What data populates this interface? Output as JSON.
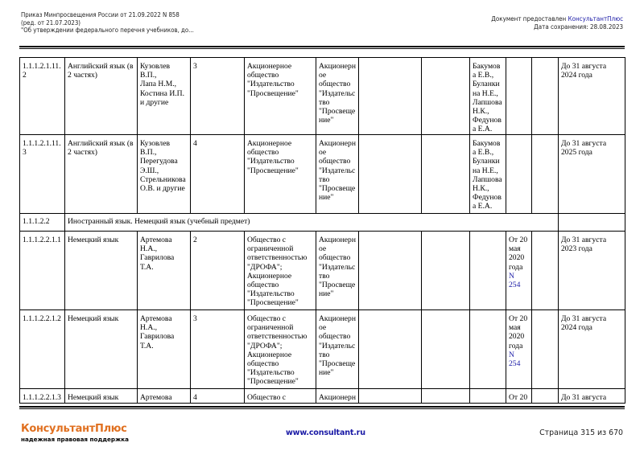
{
  "header": {
    "left_lines": [
      "Приказ Минпросвещения России от 21.09.2022 N 858",
      "(ред. от 21.07.2023)",
      "\"Об утверждении федерального перечня учебников, до..."
    ],
    "provided_prefix": "Документ предоставлен ",
    "provided_brand": "КонсультантПлюс",
    "saved_date": "Дата сохранения: 28.08.2023"
  },
  "table": {
    "rows": [
      {
        "type": "item",
        "cells": [
          {
            "t": "1.1.1.2.1.11.\n2"
          },
          {
            "t": "Английский язык (в\n2 частях)"
          },
          {
            "t": "Кузовлев\nВ.П.,\nЛапа Н.М.,\nКостина И.П.\nи другие"
          },
          {
            "t": "3"
          },
          {
            "t": "Акционерное\nобщество\n\"Издательство\n\"Просвещение\""
          },
          {
            "t": "Акционерн\nое\nобщество\n\"Издательс\nтво\n\"Просвеще\nние\""
          },
          {
            "t": ""
          },
          {
            "t": ""
          },
          {
            "t": "Бакумов\nа Е.В.,\nБуланки\nна Н.Е.,\nЛапшова\nН.К.,\nФедунов\nа Е.А."
          },
          {
            "t": ""
          },
          {
            "t": ""
          },
          {
            "t": "До 31 августа\n2024 года"
          }
        ]
      },
      {
        "type": "item",
        "cells": [
          {
            "t": "1.1.1.2.1.11.\n3"
          },
          {
            "t": "Английский язык (в\n2 частях)"
          },
          {
            "t": "Кузовлев\nВ.П.,\nПерегудова\nЭ.Ш.,\nСтрельникова\nО.В. и другие"
          },
          {
            "t": "4"
          },
          {
            "t": "Акционерное\nобщество\n\"Издательство\n\"Просвещение\""
          },
          {
            "t": "Акционерн\nое\nобщество\n\"Издательс\nтво\n\"Просвеще\nние\""
          },
          {
            "t": ""
          },
          {
            "t": ""
          },
          {
            "t": "Бакумов\nа Е.В.,\nБуланки\nна Н.Е.,\nЛапшова\nН.К.,\nФедунов\nа Е.А."
          },
          {
            "t": ""
          },
          {
            "t": ""
          },
          {
            "t": "До 31 августа\n2025 года"
          }
        ]
      },
      {
        "type": "section",
        "code": "1.1.1.2.2",
        "title": "Иностранный язык. Немецкий язык (учебный предмет)"
      },
      {
        "type": "item",
        "cells": [
          {
            "t": "1.1.1.2.2.1.1"
          },
          {
            "t": "Немецкий язык"
          },
          {
            "t": "Артемова\nН.А.,\nГаврилова\nТ.А."
          },
          {
            "t": "2"
          },
          {
            "t": "Общество с\nограниченной\nответственностью\n\"ДРОФА\";\nАкционерное\nобщество\n\"Издательство\n\"Просвещение\""
          },
          {
            "t": "Акционерн\nое\nобщество\n\"Издательс\nтво\n\"Просвеще\nние\""
          },
          {
            "t": ""
          },
          {
            "t": ""
          },
          {
            "t": ""
          },
          {
            "t": "От 20\nмая\n2020\nгода ",
            "link": "N\n254"
          },
          {
            "t": ""
          },
          {
            "t": "До 31 августа\n2023 года"
          }
        ]
      },
      {
        "type": "item",
        "cells": [
          {
            "t": "1.1.1.2.2.1.2"
          },
          {
            "t": "Немецкий язык"
          },
          {
            "t": "Артемова\nН.А.,\nГаврилова\nТ.А."
          },
          {
            "t": "3"
          },
          {
            "t": "Общество с\nограниченной\nответственностью\n\"ДРОФА\";\nАкционерное\nобщество\n\"Издательство\n\"Просвещение\""
          },
          {
            "t": "Акционерн\nое\nобщество\n\"Издательс\nтво\n\"Просвеще\nние\""
          },
          {
            "t": ""
          },
          {
            "t": ""
          },
          {
            "t": ""
          },
          {
            "t": "От 20\nмая\n2020\nгода ",
            "link": "N\n254"
          },
          {
            "t": ""
          },
          {
            "t": "До 31 августа\n2024 года"
          }
        ]
      },
      {
        "type": "item",
        "cells": [
          {
            "t": "1.1.1.2.2.1.3"
          },
          {
            "t": "Немецкий язык"
          },
          {
            "t": "Артемова"
          },
          {
            "t": "4"
          },
          {
            "t": "Общество с"
          },
          {
            "t": "Акционерн"
          },
          {
            "t": ""
          },
          {
            "t": ""
          },
          {
            "t": ""
          },
          {
            "t": "От 20"
          },
          {
            "t": ""
          },
          {
            "t": "До 31 августа"
          }
        ]
      }
    ]
  },
  "footer": {
    "brand": "КонсультантПлюс",
    "tagline": "надежная правовая поддержка",
    "url": "www.consultant.ru",
    "page": "Страница 315 из 670"
  },
  "colors": {
    "link": "#1a1aa6",
    "brand_orange": "#e07020"
  }
}
